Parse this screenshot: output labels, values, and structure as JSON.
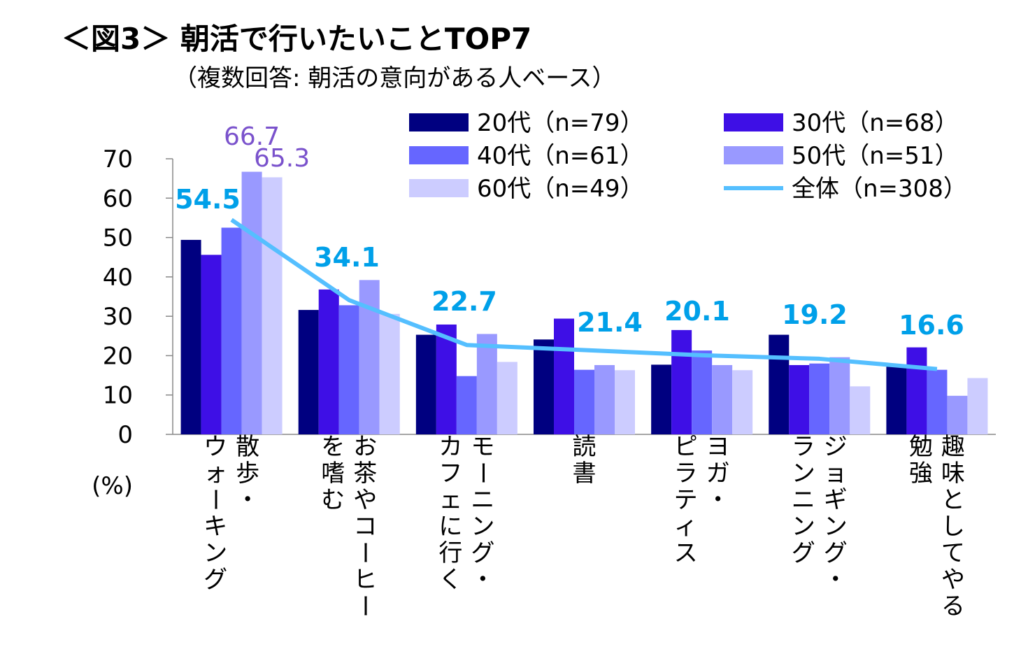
{
  "title": "＜図3＞ 朝活で行いたいことTOP7",
  "subtitle": "（複数回答: 朝活の意向がある人ベース）",
  "chart_data": {
    "type": "bar",
    "unit_label": "(%)",
    "ylim": [
      0,
      70
    ],
    "yticks": [
      "0",
      "10",
      "20",
      "30",
      "40",
      "50",
      "60",
      "70"
    ],
    "categories": [
      [
        "散歩・",
        "ウォーキング"
      ],
      [
        "お茶やコーヒー",
        "を嗜む"
      ],
      [
        "モーニング・",
        "カフェに行く"
      ],
      [
        "読書"
      ],
      [
        "ヨガ・",
        "ピラティス"
      ],
      [
        "ジョギング・",
        "ランニング"
      ],
      [
        "趣味としてやる",
        "勉強"
      ]
    ],
    "series": [
      {
        "name": "20代（n=79）",
        "color": "#000080",
        "values": [
          49.4,
          31.6,
          25.3,
          24.1,
          17.7,
          25.3,
          17.7
        ]
      },
      {
        "name": "30代（n=68）",
        "color": "#3E0FE6",
        "values": [
          45.6,
          36.8,
          27.9,
          29.4,
          26.5,
          17.6,
          22.1
        ]
      },
      {
        "name": "40代（n=61）",
        "color": "#6666FF",
        "values": [
          52.5,
          32.8,
          14.8,
          16.4,
          21.3,
          18.0,
          16.4
        ]
      },
      {
        "name": "50代（n=51）",
        "color": "#9999FF",
        "values": [
          66.7,
          39.2,
          25.5,
          17.6,
          17.6,
          19.6,
          9.8
        ]
      },
      {
        "name": "60代（n=49）",
        "color": "#CCCCFF",
        "values": [
          65.3,
          30.6,
          18.4,
          16.3,
          16.3,
          12.2,
          14.3
        ]
      }
    ],
    "line": {
      "name": "全体（n=308）",
      "color": "#55BFFF",
      "values": [
        54.5,
        34.1,
        22.7,
        21.4,
        20.1,
        19.2,
        16.6
      ]
    },
    "line_labels": [
      "54.5",
      "34.1",
      "22.7",
      "21.4",
      "20.1",
      "19.2",
      "16.6"
    ],
    "bar_labels": [
      {
        "text": "66.7",
        "color": "#7A52CC"
      },
      {
        "text": "65.3",
        "color": "#7A52CC"
      }
    ],
    "label_color": "#00A0E9"
  }
}
